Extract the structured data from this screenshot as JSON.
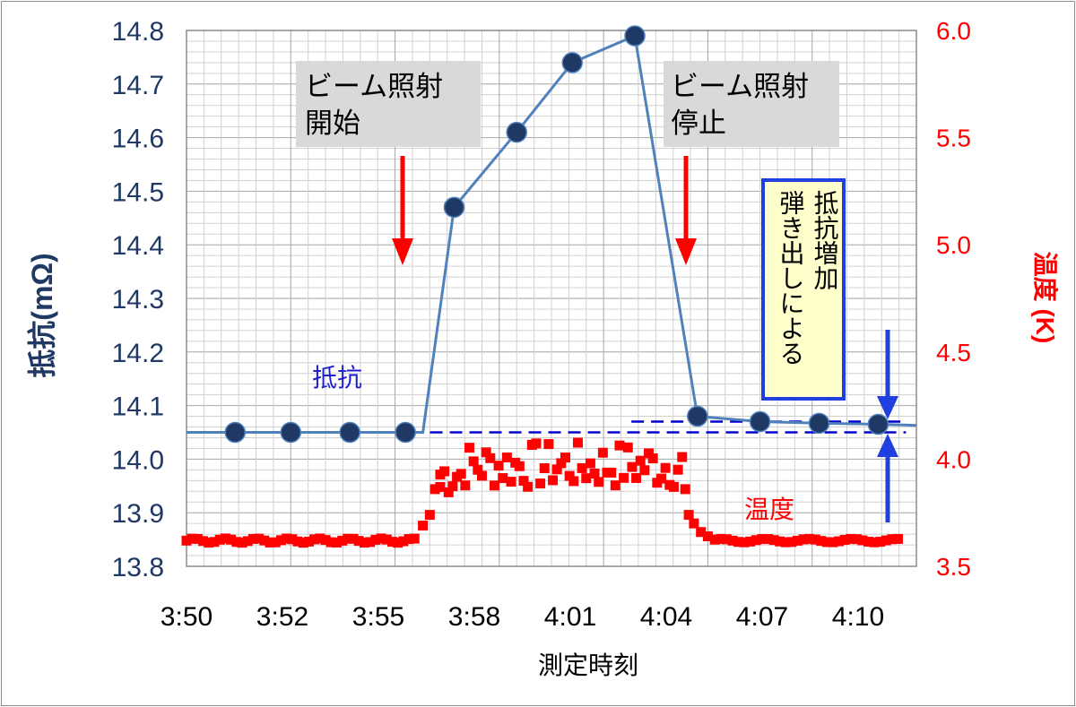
{
  "chart_data": {
    "type": "line",
    "xlabel": "測定時刻",
    "x_tick_labels": [
      "3:50",
      "3:52",
      "3:55",
      "3:58",
      "4:01",
      "4:04",
      "4:07",
      "4:10"
    ],
    "x_range_minutes": [
      0,
      21
    ],
    "y_left": {
      "label": "抵抗(mΩ)",
      "range": [
        13.8,
        14.8
      ],
      "ticks": [
        13.8,
        13.9,
        14.0,
        14.1,
        14.2,
        14.3,
        14.4,
        14.5,
        14.6,
        14.7,
        14.8
      ],
      "color": "#1f3864"
    },
    "y_right": {
      "label": "温度 (K)",
      "range": [
        3.5,
        6.0
      ],
      "ticks": [
        3.5,
        4.0,
        4.5,
        5.0,
        5.5,
        6.0
      ],
      "color": "#ff0000"
    },
    "grid": true,
    "series": [
      {
        "name": "抵抗",
        "axis": "left",
        "color": "#4f81bd",
        "marker_color": "#1f3864",
        "points": [
          [
            0,
            14.05
          ],
          [
            1.7,
            14.05
          ],
          [
            3.4,
            14.05
          ],
          [
            5.1,
            14.05
          ],
          [
            6.8,
            14.05
          ],
          [
            7.7,
            14.47
          ],
          [
            9.5,
            14.61
          ],
          [
            11.1,
            14.74
          ],
          [
            12.9,
            14.79
          ],
          [
            14.7,
            14.08
          ],
          [
            16.5,
            14.07
          ],
          [
            18.2,
            14.067
          ],
          [
            19.9,
            14.065
          ],
          [
            21,
            14.063
          ]
        ],
        "marker_points": [
          [
            1.4,
            14.05
          ],
          [
            3.0,
            14.05
          ],
          [
            4.7,
            14.05
          ],
          [
            6.3,
            14.05
          ],
          [
            7.7,
            14.47
          ],
          [
            9.5,
            14.61
          ],
          [
            11.1,
            14.74
          ],
          [
            12.9,
            14.79
          ],
          [
            14.7,
            14.08
          ],
          [
            16.5,
            14.07
          ],
          [
            18.2,
            14.067
          ],
          [
            19.9,
            14.065
          ]
        ]
      },
      {
        "name": "温度",
        "axis": "right",
        "color": "#ff0000",
        "baseline_before": [
          3.62,
          [
            0,
            6.6
          ]
        ],
        "baseline_after": [
          3.62,
          [
            15.2,
            20.6
          ]
        ]
      }
    ],
    "reference_lines": [
      {
        "value": 14.05,
        "axis": "left",
        "range_minutes": [
          3.6,
          20.7
        ],
        "style": "dashed",
        "color": "#0000cc"
      },
      {
        "value": 14.07,
        "axis": "left",
        "range_minutes": [
          12.8,
          20.7
        ],
        "style": "dashed",
        "color": "#0000cc"
      }
    ],
    "annotations": [
      {
        "text": "ビーム照射\n開始",
        "x": 6.8
      },
      {
        "text": "ビーム照射\n停止",
        "x": 14.7
      },
      {
        "text": "弾き出しによる\n抵抗増加",
        "vertical": true
      },
      {
        "text": "抵抗",
        "series": "resistance"
      },
      {
        "text": "温度",
        "series": "temperature"
      }
    ]
  }
}
